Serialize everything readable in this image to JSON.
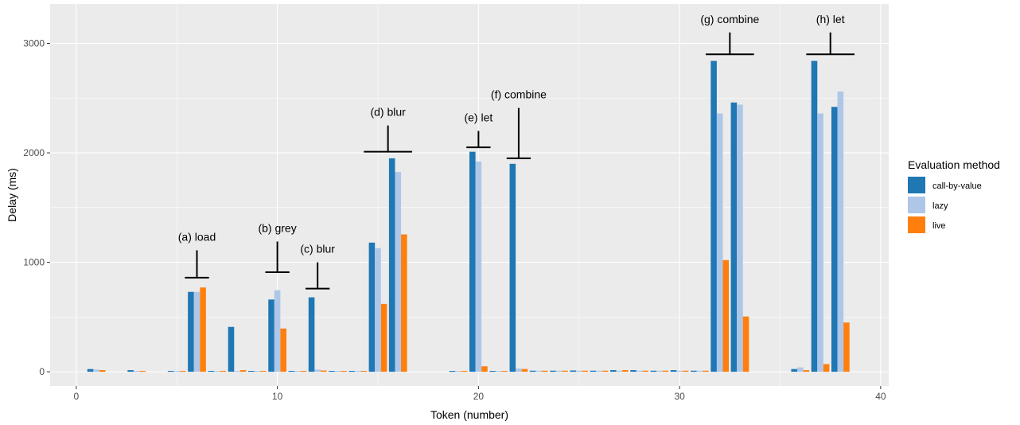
{
  "chart_data": {
    "type": "bar",
    "title": "",
    "xlabel": "Token (number)",
    "ylabel": "Delay (ms)",
    "xlim": [
      -1.3,
      40.4
    ],
    "ylim": [
      -130,
      3360
    ],
    "xticks": [
      0,
      10,
      20,
      30,
      40
    ],
    "yticks": [
      0,
      1000,
      2000,
      3000
    ],
    "grid": true,
    "legend": {
      "title": "Evaluation method",
      "position": "right"
    },
    "series": [
      {
        "name": "call-by-value",
        "color": "#1F77B4",
        "points": [
          {
            "x": 1,
            "y": 25
          },
          {
            "x": 3,
            "y": 15
          },
          {
            "x": 5,
            "y": 8
          },
          {
            "x": 6,
            "y": 730
          },
          {
            "x": 7,
            "y": 8
          },
          {
            "x": 8,
            "y": 410
          },
          {
            "x": 9,
            "y": 8
          },
          {
            "x": 10,
            "y": 660
          },
          {
            "x": 11,
            "y": 8
          },
          {
            "x": 12,
            "y": 680
          },
          {
            "x": 13,
            "y": 8
          },
          {
            "x": 14,
            "y": 8
          },
          {
            "x": 15,
            "y": 1180
          },
          {
            "x": 16,
            "y": 1950
          },
          {
            "x": 19,
            "y": 8
          },
          {
            "x": 20,
            "y": 2010
          },
          {
            "x": 21,
            "y": 8
          },
          {
            "x": 22,
            "y": 1900
          },
          {
            "x": 23,
            "y": 10
          },
          {
            "x": 24,
            "y": 10
          },
          {
            "x": 25,
            "y": 12
          },
          {
            "x": 26,
            "y": 10
          },
          {
            "x": 27,
            "y": 15
          },
          {
            "x": 28,
            "y": 15
          },
          {
            "x": 29,
            "y": 10
          },
          {
            "x": 30,
            "y": 15
          },
          {
            "x": 31,
            "y": 10
          },
          {
            "x": 32,
            "y": 2840
          },
          {
            "x": 33,
            "y": 2460
          },
          {
            "x": 36,
            "y": 25
          },
          {
            "x": 37,
            "y": 2840
          },
          {
            "x": 38,
            "y": 2420
          }
        ]
      },
      {
        "name": "lazy",
        "color": "#AEC7E8",
        "points": [
          {
            "x": 1,
            "y": 20
          },
          {
            "x": 3,
            "y": 8
          },
          {
            "x": 5,
            "y": 8
          },
          {
            "x": 6,
            "y": 730
          },
          {
            "x": 7,
            "y": 8
          },
          {
            "x": 8,
            "y": 8
          },
          {
            "x": 9,
            "y": 8
          },
          {
            "x": 10,
            "y": 745
          },
          {
            "x": 11,
            "y": 8
          },
          {
            "x": 12,
            "y": 20
          },
          {
            "x": 13,
            "y": 8
          },
          {
            "x": 14,
            "y": 8
          },
          {
            "x": 15,
            "y": 1130
          },
          {
            "x": 16,
            "y": 1825
          },
          {
            "x": 19,
            "y": 8
          },
          {
            "x": 20,
            "y": 1920
          },
          {
            "x": 21,
            "y": 8
          },
          {
            "x": 22,
            "y": 30
          },
          {
            "x": 23,
            "y": 10
          },
          {
            "x": 24,
            "y": 10
          },
          {
            "x": 25,
            "y": 10
          },
          {
            "x": 26,
            "y": 10
          },
          {
            "x": 27,
            "y": 10
          },
          {
            "x": 28,
            "y": 10
          },
          {
            "x": 29,
            "y": 10
          },
          {
            "x": 30,
            "y": 10
          },
          {
            "x": 31,
            "y": 10
          },
          {
            "x": 32,
            "y": 2360
          },
          {
            "x": 33,
            "y": 2440
          },
          {
            "x": 36,
            "y": 40
          },
          {
            "x": 37,
            "y": 2360
          },
          {
            "x": 38,
            "y": 2560
          }
        ]
      },
      {
        "name": "live",
        "color": "#FF7F0E",
        "points": [
          {
            "x": 1,
            "y": 15
          },
          {
            "x": 3,
            "y": 8
          },
          {
            "x": 5,
            "y": 8
          },
          {
            "x": 6,
            "y": 770
          },
          {
            "x": 7,
            "y": 8
          },
          {
            "x": 8,
            "y": 15
          },
          {
            "x": 9,
            "y": 8
          },
          {
            "x": 10,
            "y": 395
          },
          {
            "x": 11,
            "y": 8
          },
          {
            "x": 12,
            "y": 12
          },
          {
            "x": 13,
            "y": 8
          },
          {
            "x": 14,
            "y": 8
          },
          {
            "x": 15,
            "y": 620
          },
          {
            "x": 16,
            "y": 1255
          },
          {
            "x": 19,
            "y": 8
          },
          {
            "x": 20,
            "y": 50
          },
          {
            "x": 21,
            "y": 8
          },
          {
            "x": 22,
            "y": 25
          },
          {
            "x": 23,
            "y": 10
          },
          {
            "x": 24,
            "y": 10
          },
          {
            "x": 25,
            "y": 10
          },
          {
            "x": 26,
            "y": 10
          },
          {
            "x": 27,
            "y": 15
          },
          {
            "x": 28,
            "y": 10
          },
          {
            "x": 29,
            "y": 10
          },
          {
            "x": 30,
            "y": 10
          },
          {
            "x": 31,
            "y": 10
          },
          {
            "x": 32,
            "y": 1020
          },
          {
            "x": 33,
            "y": 505
          },
          {
            "x": 36,
            "y": 15
          },
          {
            "x": 37,
            "y": 70
          },
          {
            "x": 38,
            "y": 450
          }
        ]
      }
    ],
    "annotations": [
      {
        "label": "(a) load",
        "x": 6,
        "y_top": 1110,
        "y_bar": 860,
        "half_width": 0.6
      },
      {
        "label": "(b) grey",
        "x": 10,
        "y_top": 1190,
        "y_bar": 910,
        "half_width": 0.6
      },
      {
        "label": "(c) blur",
        "x": 12,
        "y_top": 1000,
        "y_bar": 760,
        "half_width": 0.6
      },
      {
        "label": "(d) blur",
        "x": 15.5,
        "y_top": 2250,
        "y_bar": 2010,
        "half_width": 1.2
      },
      {
        "label": "(e) let",
        "x": 20,
        "y_top": 2200,
        "y_bar": 2050,
        "half_width": 0.6
      },
      {
        "label": "(f) combine",
        "x": 22,
        "y_top": 2410,
        "y_bar": 1950,
        "half_width": 0.6
      },
      {
        "label": "(g) combine",
        "x": 32.5,
        "y_top": 3100,
        "y_bar": 2900,
        "half_width": 1.2
      },
      {
        "label": "(h) let",
        "x": 37.5,
        "y_top": 3100,
        "y_bar": 2900,
        "half_width": 1.2
      }
    ]
  }
}
